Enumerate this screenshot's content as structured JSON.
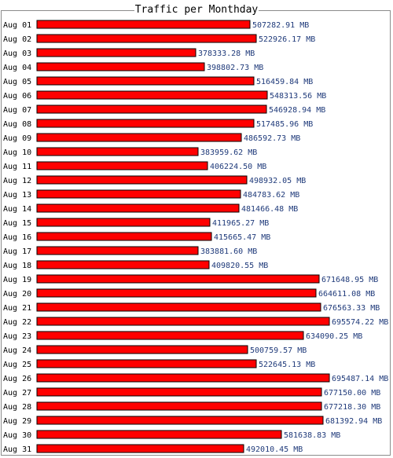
{
  "chart_data": {
    "type": "bar",
    "orientation": "horizontal",
    "title": "Traffic per Monthday",
    "unit": "MB",
    "bar_color": "#ff0000",
    "value_label_color": "#1f3a7a",
    "categories": [
      "Aug 01",
      "Aug 02",
      "Aug 03",
      "Aug 04",
      "Aug 05",
      "Aug 06",
      "Aug 07",
      "Aug 08",
      "Aug 09",
      "Aug 10",
      "Aug 11",
      "Aug 12",
      "Aug 13",
      "Aug 14",
      "Aug 15",
      "Aug 16",
      "Aug 17",
      "Aug 18",
      "Aug 19",
      "Aug 20",
      "Aug 21",
      "Aug 22",
      "Aug 23",
      "Aug 24",
      "Aug 25",
      "Aug 26",
      "Aug 27",
      "Aug 28",
      "Aug 29",
      "Aug 30",
      "Aug 31"
    ],
    "values": [
      507282.91,
      522926.17,
      378333.28,
      398802.73,
      516459.84,
      548313.56,
      546928.94,
      517485.96,
      486592.73,
      383959.62,
      406224.5,
      498932.05,
      484783.62,
      481466.48,
      411965.27,
      415665.47,
      383881.6,
      409820.55,
      671648.95,
      664611.08,
      676563.33,
      695574.22,
      634090.25,
      500759.57,
      522645.13,
      695487.14,
      677150.0,
      677218.3,
      681392.94,
      581638.83,
      492010.45
    ],
    "value_labels": [
      "507282.91 MB",
      "522926.17 MB",
      "378333.28 MB",
      "398802.73 MB",
      "516459.84 MB",
      "548313.56 MB",
      "546928.94 MB",
      "517485.96 MB",
      "486592.73 MB",
      "383959.62 MB",
      "406224.50 MB",
      "498932.05 MB",
      "484783.62 MB",
      "481466.48 MB",
      "411965.27 MB",
      "415665.47 MB",
      "383881.60 MB",
      "409820.55 MB",
      "671648.95 MB",
      "664611.08 MB",
      "676563.33 MB",
      "695574.22 MB",
      "634090.25 MB",
      "500759.57 MB",
      "522645.13 MB",
      "695487.14 MB",
      "677150.00 MB",
      "677218.30 MB",
      "681392.94 MB",
      "581638.83 MB",
      "492010.45 MB"
    ]
  }
}
